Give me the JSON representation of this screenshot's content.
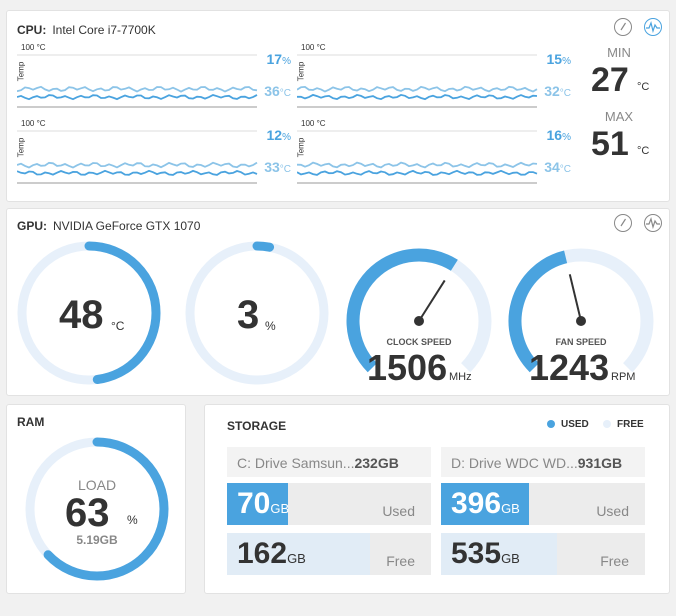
{
  "cpu": {
    "label": "CPU:",
    "name": "Intel Core i7-7700K",
    "graphs": [
      {
        "max_label": "100 °C",
        "axis_label": "Temp",
        "load": "17",
        "load_unit": "%",
        "temp": "36",
        "temp_unit": "°C"
      },
      {
        "max_label": "100 °C",
        "axis_label": "Temp",
        "load": "15",
        "load_unit": "%",
        "temp": "32",
        "temp_unit": "°C"
      },
      {
        "max_label": "100 °C",
        "axis_label": "Temp",
        "load": "12",
        "load_unit": "%",
        "temp": "33",
        "temp_unit": "°C"
      },
      {
        "max_label": "100 °C",
        "axis_label": "Temp",
        "load": "16",
        "load_unit": "%",
        "temp": "34",
        "temp_unit": "°C"
      }
    ],
    "min_label": "MIN",
    "min_value": "27",
    "min_unit": "°C",
    "max_label": "MAX",
    "max_value": "51",
    "max_unit": "°C"
  },
  "gpu": {
    "label": "GPU:",
    "name": "NVIDIA GeForce GTX 1070",
    "temp": {
      "value": "48",
      "unit": "°C",
      "fraction": 0.48
    },
    "load": {
      "value": "3",
      "unit": "%",
      "fraction": 0.03
    },
    "clock": {
      "label": "CLOCK SPEED",
      "value": "1506",
      "unit": "MHz",
      "fraction": 0.62
    },
    "fan": {
      "label": "FAN SPEED",
      "value": "1243",
      "unit": "RPM",
      "fraction": 0.45
    }
  },
  "ram": {
    "title": "RAM",
    "load_label": "LOAD",
    "value": "63",
    "unit": "%",
    "used": "5.19GB",
    "fraction": 0.63
  },
  "storage": {
    "title": "STORAGE",
    "legend_used": "USED",
    "legend_free": "FREE",
    "drives": [
      {
        "name": "C: Drive Samsun...",
        "size": "232GB",
        "used": "70",
        "free": "162",
        "unit": "GB",
        "used_label": "Used",
        "free_label": "Free",
        "used_fraction": 0.3,
        "free_fraction": 0.7
      },
      {
        "name": "D: Drive WDC WD...",
        "size": "931GB",
        "used": "396",
        "free": "535",
        "unit": "GB",
        "used_label": "Used",
        "free_label": "Free",
        "used_fraction": 0.43,
        "free_fraction": 0.57
      }
    ]
  },
  "colors": {
    "accent": "#4aa3df",
    "accent_light": "#8cc4e8",
    "track": "#e7f0fa"
  }
}
